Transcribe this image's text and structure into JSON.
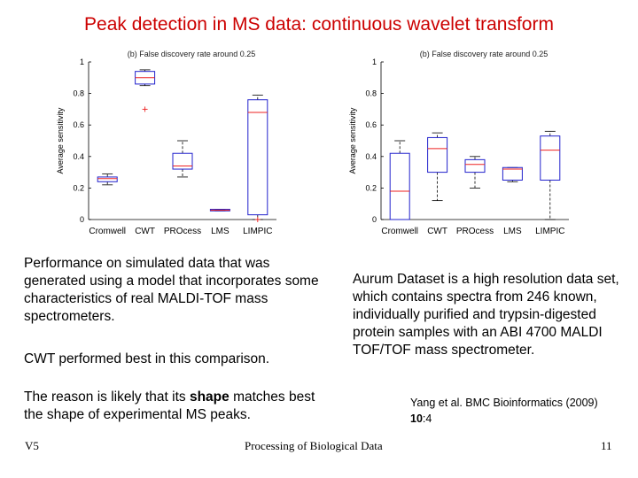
{
  "title": "Peak detection in MS data: continuous wavelet transform",
  "chart_data": [
    {
      "type": "box",
      "title": "(b) False discovery rate around 0.25",
      "xlabel": "",
      "ylabel": "Average sensitivity",
      "ylim": [
        0,
        1
      ],
      "yticks": [
        0,
        0.2,
        0.4,
        0.6,
        0.8,
        1
      ],
      "ytick_labels": [
        "0",
        "0.2",
        "0.4",
        "0.6",
        "0.8",
        "1"
      ],
      "categories": [
        "Cromwell",
        "CWT",
        "PROcess",
        "LMS",
        "LIMPIC"
      ],
      "boxes": [
        {
          "whisker_low": 0.22,
          "q1": 0.24,
          "median": 0.26,
          "q3": 0.27,
          "whisker_high": 0.29,
          "outliers": []
        },
        {
          "whisker_low": 0.85,
          "q1": 0.86,
          "median": 0.9,
          "q3": 0.94,
          "whisker_high": 0.95,
          "outliers": [
            0.7
          ]
        },
        {
          "whisker_low": 0.27,
          "q1": 0.32,
          "median": 0.34,
          "q3": 0.42,
          "whisker_high": 0.5,
          "outliers": []
        },
        {
          "whisker_low": 0.055,
          "q1": 0.055,
          "median": 0.06,
          "q3": 0.065,
          "whisker_high": 0.065,
          "outliers": []
        },
        {
          "whisker_low": 0.0,
          "q1": 0.03,
          "median": 0.68,
          "q3": 0.76,
          "whisker_high": 0.79,
          "outliers": [
            0.0
          ]
        }
      ],
      "colors": {
        "box": "#2222cc",
        "median": "#ee2222",
        "whisker": "#000000",
        "outlier": "#ee2222"
      }
    },
    {
      "type": "box",
      "title": "(b) False discovery rate around 0.25",
      "xlabel": "",
      "ylabel": "Average sensitivity",
      "ylim": [
        0,
        1
      ],
      "yticks": [
        0,
        0.2,
        0.4,
        0.6,
        0.8,
        1
      ],
      "ytick_labels": [
        "0",
        "0.2",
        "0.4",
        "0.6",
        "0.8",
        "1"
      ],
      "categories": [
        "Cromwell",
        "CWT",
        "PROcess",
        "LMS",
        "LIMPIC"
      ],
      "boxes": [
        {
          "whisker_low": 0.0,
          "q1": 0.0,
          "median": 0.18,
          "q3": 0.42,
          "whisker_high": 0.5,
          "outliers": []
        },
        {
          "whisker_low": 0.12,
          "q1": 0.3,
          "median": 0.45,
          "q3": 0.52,
          "whisker_high": 0.55,
          "outliers": []
        },
        {
          "whisker_low": 0.2,
          "q1": 0.3,
          "median": 0.35,
          "q3": 0.38,
          "whisker_high": 0.4,
          "outliers": []
        },
        {
          "whisker_low": 0.24,
          "q1": 0.25,
          "median": 0.32,
          "q3": 0.33,
          "whisker_high": 0.33,
          "outliers": []
        },
        {
          "whisker_low": 0.0,
          "q1": 0.25,
          "median": 0.44,
          "q3": 0.53,
          "whisker_high": 0.56,
          "outliers": []
        }
      ],
      "colors": {
        "box": "#2222cc",
        "median": "#ee2222",
        "whisker": "#000000",
        "outlier": "#ee2222"
      }
    }
  ],
  "left_text": {
    "para1": "Performance on simulated data that was generated using a model that incorporates some characteristics of real MALDI-TOF mass spectrometers.",
    "para2": "CWT performed best in this comparison.",
    "para3_before": "The reason is likely that its ",
    "para3_bold": "shape",
    "para3_after": " matches best the shape of experimental MS peaks."
  },
  "right_text": {
    "para": "Aurum Dataset is a high resolution data set, which contains spectra from 246 known, individually purified and trypsin-digested protein samples with an ABI 4700 MALDI TOF/TOF mass spectrometer."
  },
  "citation": {
    "line1": "Yang et al. BMC Bioinformatics (2009)",
    "volume": "10",
    "issue": ":4"
  },
  "footer": {
    "left": "V5",
    "center": "Processing of Biological Data",
    "right": "11"
  }
}
